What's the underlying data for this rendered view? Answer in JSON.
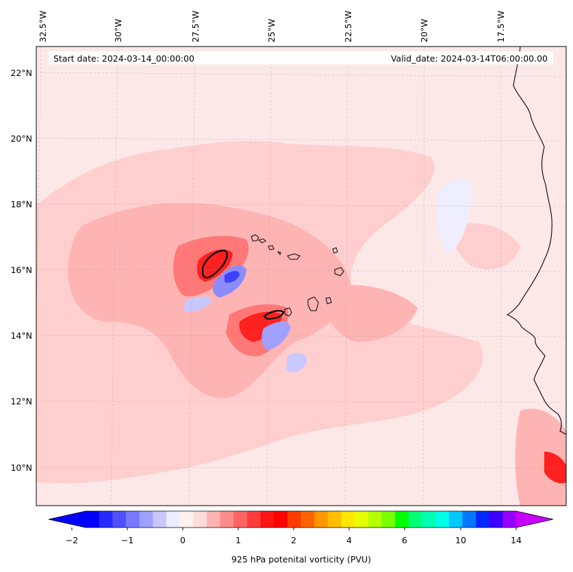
{
  "map": {
    "start_date": "Start date: 2024-03-14_00:00:00",
    "valid_date": "Valid_date: 2024-03-14T06:00:00.00",
    "lon_labels": [
      "32.5°W",
      "30°W",
      "27.5°W",
      "25°W",
      "22.5°W",
      "20°W",
      "17.5°W"
    ],
    "lat_labels": [
      "22°N",
      "20°N",
      "18°N",
      "16°N",
      "14°N",
      "12°N",
      "10°N"
    ],
    "features": {
      "ocean_background": "#fde8e8",
      "islands": "Cabo Verde",
      "coastline": "West Africa"
    }
  },
  "colorbar": {
    "label": "925 hPa potenital vorticity (PVU)",
    "tick_labels": [
      "−2",
      "−1",
      "0",
      "1",
      "2",
      "4",
      "6",
      "10",
      "14"
    ],
    "colors": [
      "#0000ff",
      "#2828ff",
      "#5050ff",
      "#7878ff",
      "#a0a0ff",
      "#c8c8ff",
      "#ececff",
      "#fff0f0",
      "#ffdcdc",
      "#ffb4b4",
      "#ff8c8c",
      "#ff6464",
      "#ff3c3c",
      "#ff1414",
      "#ff0000",
      "#ff3c00",
      "#ff6400",
      "#ff9600",
      "#ffbe00",
      "#ffe600",
      "#e6ff00",
      "#b4ff00",
      "#78ff00",
      "#00ff00",
      "#00ff78",
      "#00ffb4",
      "#00ffe6",
      "#00c8ff",
      "#0078ff",
      "#0028ff",
      "#3c00ff",
      "#9600ff"
    ],
    "extend_low": "#0000ff",
    "extend_high": "#c800ff"
  }
}
